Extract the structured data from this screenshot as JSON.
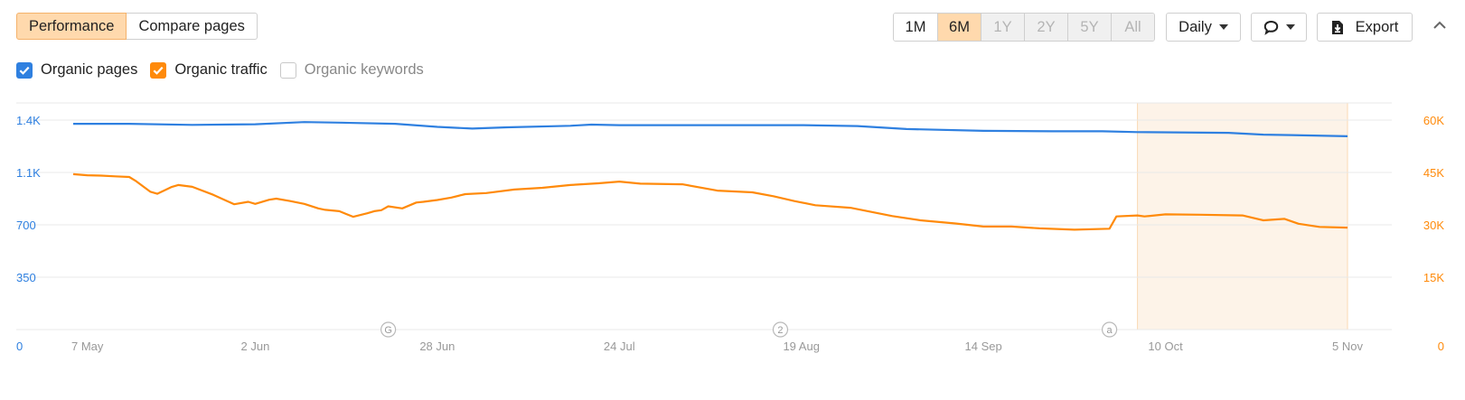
{
  "tabs": [
    "Performance",
    "Compare pages"
  ],
  "ranges": [
    {
      "label": "1M",
      "state": "normal"
    },
    {
      "label": "6M",
      "state": "active"
    },
    {
      "label": "1Y",
      "state": "disabled"
    },
    {
      "label": "2Y",
      "state": "disabled"
    },
    {
      "label": "5Y",
      "state": "disabled"
    },
    {
      "label": "All",
      "state": "disabled"
    }
  ],
  "toolbar": {
    "interval_label": "Daily",
    "annotation_icon": "comment-icon",
    "export_label": "Export",
    "export_icon": "download-file-icon",
    "collapse_icon": "chevron-up-icon"
  },
  "legend": [
    {
      "label": "Organic pages",
      "checked": true,
      "color": "#2f80e0"
    },
    {
      "label": "Organic traffic",
      "checked": true,
      "color": "#ff8a0a"
    },
    {
      "label": "Organic keywords",
      "checked": false,
      "color": "#cccccc"
    }
  ],
  "colors": {
    "pages": "#2f80e0",
    "traffic": "#ff8a0a",
    "highlight": "#fdf3e8",
    "grid": "#e8e8e8"
  },
  "chart_data": {
    "type": "line",
    "x_range": [
      "2023-05-07",
      "2023-11-05"
    ],
    "x_ticks": [
      "7 May",
      "2 Jun",
      "28 Jun",
      "24 Jul",
      "19 Aug",
      "14 Sep",
      "10 Oct",
      "5 Nov"
    ],
    "left_axis": {
      "ticks": [
        "0",
        "350",
        "700",
        "1.1K",
        "1.4K"
      ],
      "ylim": [
        0,
        1400
      ]
    },
    "right_axis": {
      "ticks": [
        "0",
        "15K",
        "30K",
        "45K",
        "60K"
      ],
      "ylim": [
        0,
        60000
      ]
    },
    "annotations": [
      {
        "label": "G",
        "date": "2023-06-21"
      },
      {
        "label": "2",
        "date": "2023-08-16"
      },
      {
        "label": "a",
        "date": "2023-10-02"
      }
    ],
    "highlight_range": [
      "2023-10-06",
      "2023-11-05"
    ],
    "series": [
      {
        "name": "Organic pages",
        "axis": "left",
        "points": [
          [
            "2023-05-07",
            1375
          ],
          [
            "2023-05-15",
            1375
          ],
          [
            "2023-05-24",
            1368
          ],
          [
            "2023-06-02",
            1372
          ],
          [
            "2023-06-09",
            1387
          ],
          [
            "2023-06-14",
            1383
          ],
          [
            "2023-06-22",
            1375
          ],
          [
            "2023-06-28",
            1355
          ],
          [
            "2023-07-03",
            1343
          ],
          [
            "2023-07-08",
            1352
          ],
          [
            "2023-07-17",
            1362
          ],
          [
            "2023-07-20",
            1370
          ],
          [
            "2023-07-24",
            1366
          ],
          [
            "2023-08-05",
            1366
          ],
          [
            "2023-08-19",
            1366
          ],
          [
            "2023-08-27",
            1360
          ],
          [
            "2023-09-03",
            1340
          ],
          [
            "2023-09-14",
            1328
          ],
          [
            "2023-09-24",
            1325
          ],
          [
            "2023-10-01",
            1325
          ],
          [
            "2023-10-06",
            1320
          ],
          [
            "2023-10-19",
            1315
          ],
          [
            "2023-10-24",
            1303
          ],
          [
            "2023-10-28",
            1300
          ],
          [
            "2023-11-05",
            1292
          ]
        ]
      },
      {
        "name": "Organic traffic",
        "axis": "right",
        "points": [
          [
            "2023-05-07",
            44500
          ],
          [
            "2023-05-09",
            44200
          ],
          [
            "2023-05-11",
            44100
          ],
          [
            "2023-05-13",
            43900
          ],
          [
            "2023-05-15",
            43700
          ],
          [
            "2023-05-16",
            42500
          ],
          [
            "2023-05-18",
            39500
          ],
          [
            "2023-05-19",
            38900
          ],
          [
            "2023-05-21",
            40800
          ],
          [
            "2023-05-22",
            41400
          ],
          [
            "2023-05-24",
            40900
          ],
          [
            "2023-05-27",
            38600
          ],
          [
            "2023-05-29",
            36800
          ],
          [
            "2023-05-30",
            35900
          ],
          [
            "2023-06-01",
            36600
          ],
          [
            "2023-06-02",
            36000
          ],
          [
            "2023-06-04",
            37200
          ],
          [
            "2023-06-05",
            37500
          ],
          [
            "2023-06-07",
            36800
          ],
          [
            "2023-06-09",
            36000
          ],
          [
            "2023-06-11",
            34700
          ],
          [
            "2023-06-12",
            34300
          ],
          [
            "2023-06-14",
            33900
          ],
          [
            "2023-06-16",
            32300
          ],
          [
            "2023-06-18",
            33300
          ],
          [
            "2023-06-19",
            33900
          ],
          [
            "2023-06-20",
            34200
          ],
          [
            "2023-06-21",
            35300
          ],
          [
            "2023-06-23",
            34700
          ],
          [
            "2023-06-25",
            36400
          ],
          [
            "2023-06-26",
            36600
          ],
          [
            "2023-06-28",
            37100
          ],
          [
            "2023-06-30",
            37800
          ],
          [
            "2023-07-02",
            38800
          ],
          [
            "2023-07-05",
            39100
          ],
          [
            "2023-07-09",
            40100
          ],
          [
            "2023-07-13",
            40600
          ],
          [
            "2023-07-17",
            41400
          ],
          [
            "2023-07-21",
            41900
          ],
          [
            "2023-07-24",
            42400
          ],
          [
            "2023-07-27",
            41800
          ],
          [
            "2023-08-02",
            41600
          ],
          [
            "2023-08-07",
            39800
          ],
          [
            "2023-08-12",
            39300
          ],
          [
            "2023-08-15",
            38200
          ],
          [
            "2023-08-18",
            36800
          ],
          [
            "2023-08-21",
            35600
          ],
          [
            "2023-08-26",
            34900
          ],
          [
            "2023-09-01",
            32500
          ],
          [
            "2023-09-05",
            31300
          ],
          [
            "2023-09-10",
            30400
          ],
          [
            "2023-09-14",
            29500
          ],
          [
            "2023-09-18",
            29500
          ],
          [
            "2023-09-22",
            29000
          ],
          [
            "2023-09-27",
            28600
          ],
          [
            "2023-10-02",
            28900
          ],
          [
            "2023-10-03",
            32400
          ],
          [
            "2023-10-06",
            32700
          ],
          [
            "2023-10-07",
            32400
          ],
          [
            "2023-10-10",
            33000
          ],
          [
            "2023-10-15",
            32900
          ],
          [
            "2023-10-21",
            32700
          ],
          [
            "2023-10-24",
            31300
          ],
          [
            "2023-10-27",
            31700
          ],
          [
            "2023-10-29",
            30300
          ],
          [
            "2023-11-01",
            29400
          ],
          [
            "2023-11-05",
            29200
          ]
        ]
      }
    ]
  }
}
